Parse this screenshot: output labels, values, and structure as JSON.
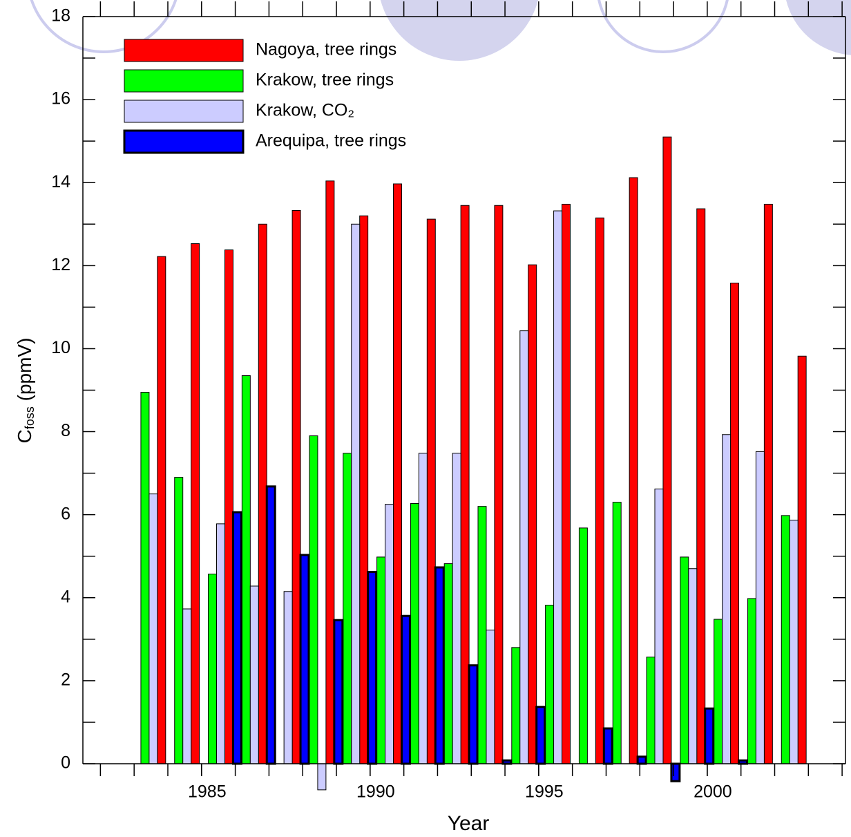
{
  "chart_data": {
    "type": "bar",
    "xlabel": "Year",
    "ylabel": {
      "main": "C",
      "sub": "foss",
      "rest": " (ppmV)"
    },
    "x": [
      1984,
      1985,
      1986,
      1987,
      1988,
      1989,
      1990,
      1991,
      1992,
      1993,
      1994,
      1995,
      1996,
      1997,
      1998,
      1999,
      2000,
      2001,
      2002,
      2003
    ],
    "series": [
      {
        "name": "Nagoya, tree rings",
        "color": "#ff0000",
        "values": [
          12.22,
          12.53,
          12.38,
          13.0,
          13.33,
          14.04,
          13.2,
          13.97,
          13.12,
          13.45,
          13.45,
          12.02,
          13.48,
          13.15,
          14.12,
          15.1,
          13.37,
          11.58,
          13.48,
          9.82
        ]
      },
      {
        "name": "Krakow, tree rings",
        "color": "#00ff00",
        "values": [
          8.95,
          6.9,
          4.57,
          9.35,
          null,
          7.9,
          7.48,
          4.98,
          6.27,
          4.82,
          6.2,
          2.8,
          3.82,
          5.68,
          6.3,
          2.57,
          4.98,
          3.48,
          3.98,
          5.98
        ]
      },
      {
        "name": "Krakow, CO₂",
        "color": "#ccccff",
        "values": [
          6.5,
          3.73,
          5.78,
          4.28,
          4.15,
          -0.63,
          13.0,
          6.25,
          7.48,
          7.48,
          3.22,
          10.43,
          13.32,
          null,
          null,
          6.62,
          4.7,
          7.93,
          7.52,
          5.87
        ]
      },
      {
        "name": "Arequipa, tree rings",
        "color": "#0000ff",
        "values": [
          null,
          null,
          6.06,
          6.68,
          5.03,
          3.46,
          4.62,
          3.56,
          4.73,
          2.37,
          0.08,
          1.37,
          null,
          0.85,
          0.17,
          -0.42,
          1.33,
          0.08,
          null,
          null
        ]
      }
    ],
    "xlim": [
      1981.48,
      2004.1
    ],
    "xticks": [
      1985,
      1990,
      1995,
      2000
    ],
    "xminorticks": [
      1982,
      1983,
      1984,
      1985,
      1986,
      1987,
      1988,
      1989,
      1990,
      1991,
      1992,
      1993,
      1994,
      1995,
      1996,
      1997,
      1998,
      1999,
      2000,
      2001,
      2002,
      2003,
      2004
    ],
    "ylim": [
      0,
      18
    ],
    "yticks": [
      0,
      2,
      4,
      6,
      8,
      10,
      12,
      14,
      16,
      18
    ],
    "yminorticks": [
      1,
      3,
      5,
      7,
      9,
      11,
      13,
      15,
      17
    ],
    "legend": "top-left"
  }
}
